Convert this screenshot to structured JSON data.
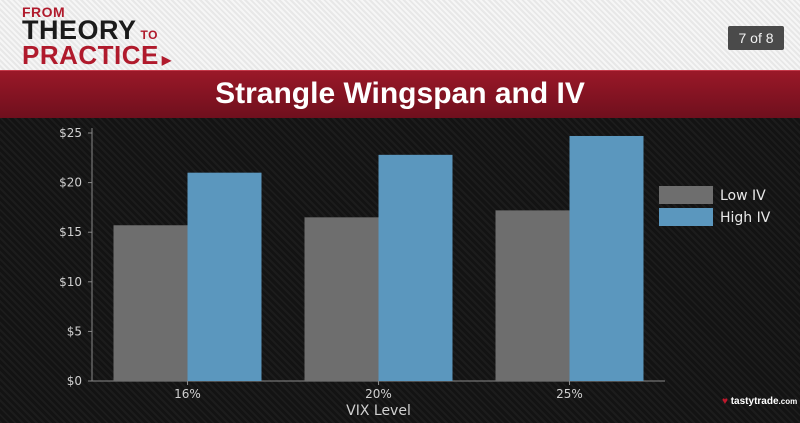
{
  "header": {
    "logo_line1": "FROM",
    "logo_line2": "THEORY",
    "logo_line2_to": "TO",
    "logo_line3": "PRACTICE",
    "page_indicator": "7 of 8"
  },
  "banner": {
    "title": "Strangle Wingspan and IV"
  },
  "brand": {
    "name": "tastytrade",
    "suffix": ".com"
  },
  "colors": {
    "low_iv": "#6e6e6e",
    "high_iv": "#5b97be",
    "banner": "#8a1424"
  },
  "chart_data": {
    "type": "bar",
    "xlabel": "VIX Level",
    "ylabel": "",
    "categories": [
      "16%",
      "20%",
      "25%"
    ],
    "series": [
      {
        "name": "Low IV",
        "values": [
          15.7,
          16.5,
          17.2
        ]
      },
      {
        "name": "High IV",
        "values": [
          21.0,
          22.8,
          24.7
        ]
      }
    ],
    "ylim": [
      0,
      26
    ],
    "yticks": [
      {
        "value": 0,
        "label": "$0"
      },
      {
        "value": 5,
        "label": "$5"
      },
      {
        "value": 10,
        "label": "$10"
      },
      {
        "value": 15,
        "label": "$15"
      },
      {
        "value": 20,
        "label": "$20"
      },
      {
        "value": 25,
        "label": "$25"
      }
    ],
    "legend_position": "right"
  }
}
